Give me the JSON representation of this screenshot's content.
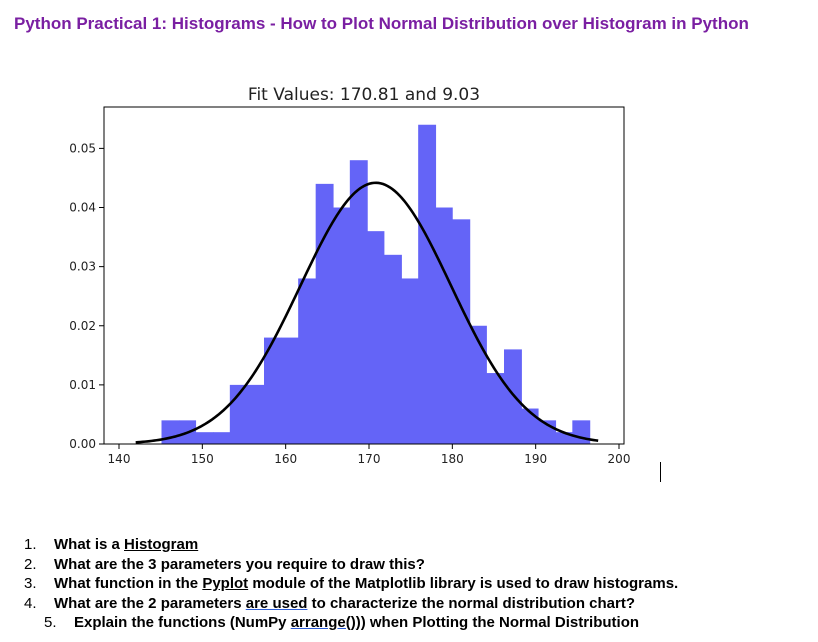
{
  "doc_title": "Python Practical 1: Histograms - How to Plot Normal Distribution over Histogram in Python",
  "colors": {
    "title": "#7a1fa2",
    "bars": "#6464f7",
    "curve": "#000000"
  },
  "chart_data": {
    "type": "bar",
    "title": "Fit Values: 170.81 and 9.03",
    "xlabel": "",
    "ylabel": "",
    "xlim": [
      140,
      200
    ],
    "ylim": [
      0,
      0.057
    ],
    "x_ticks": [
      "140",
      "150",
      "160",
      "170",
      "180",
      "190",
      "200"
    ],
    "y_ticks": [
      "0.00",
      "0.01",
      "0.02",
      "0.03",
      "0.04",
      "0.05"
    ],
    "bins": [
      {
        "x0": 145.1,
        "x1": 147.2,
        "height": 0.004
      },
      {
        "x0": 147.2,
        "x1": 149.2,
        "height": 0.004
      },
      {
        "x0": 149.2,
        "x1": 151.3,
        "height": 0.002
      },
      {
        "x0": 151.3,
        "x1": 153.3,
        "height": 0.002
      },
      {
        "x0": 153.3,
        "x1": 155.4,
        "height": 0.01
      },
      {
        "x0": 155.4,
        "x1": 157.4,
        "height": 0.01
      },
      {
        "x0": 157.4,
        "x1": 159.5,
        "height": 0.018
      },
      {
        "x0": 159.5,
        "x1": 161.5,
        "height": 0.018
      },
      {
        "x0": 161.5,
        "x1": 163.6,
        "height": 0.028
      },
      {
        "x0": 163.6,
        "x1": 165.7,
        "height": 0.044
      },
      {
        "x0": 165.7,
        "x1": 167.7,
        "height": 0.04
      },
      {
        "x0": 167.7,
        "x1": 169.8,
        "height": 0.048
      },
      {
        "x0": 169.8,
        "x1": 171.8,
        "height": 0.036
      },
      {
        "x0": 171.8,
        "x1": 173.9,
        "height": 0.032
      },
      {
        "x0": 173.9,
        "x1": 175.9,
        "height": 0.028
      },
      {
        "x0": 175.9,
        "x1": 178.0,
        "height": 0.054
      },
      {
        "x0": 178.0,
        "x1": 180.0,
        "height": 0.04
      },
      {
        "x0": 180.0,
        "x1": 182.1,
        "height": 0.038
      },
      {
        "x0": 182.1,
        "x1": 184.1,
        "height": 0.02
      },
      {
        "x0": 184.1,
        "x1": 186.2,
        "height": 0.012
      },
      {
        "x0": 186.2,
        "x1": 188.3,
        "height": 0.016
      },
      {
        "x0": 188.3,
        "x1": 190.3,
        "height": 0.006
      },
      {
        "x0": 190.3,
        "x1": 192.4,
        "height": 0.004
      },
      {
        "x0": 192.4,
        "x1": 194.4,
        "height": 0.002
      },
      {
        "x0": 194.4,
        "x1": 196.5,
        "height": 0.004
      }
    ],
    "fit": {
      "mean": 170.81,
      "std": 9.03,
      "x_range": [
        142,
        197.5
      ]
    },
    "grid": false,
    "legend": "none"
  },
  "questions": [
    {
      "num": "1.",
      "text": "What is a ",
      "underlined": "Histogram",
      "rest": ""
    },
    {
      "num": "2.",
      "text": "What are the 3 parameters you require to draw this?",
      "underlined": "",
      "rest": ""
    },
    {
      "num": "3.",
      "text": "What function in the ",
      "underlined": "Pyplot",
      "rest": " module of the Matplotlib library is used to draw histograms."
    },
    {
      "num": "4.",
      "text": "What are the 2 parameters ",
      "underlined": "are used",
      "rest": " to characterize the normal distribution chart?"
    },
    {
      "num": "5.",
      "text": "Explain the functions (NumPy ",
      "underlined": "arrange()",
      "rest": ")) when Plotting the Normal Distribution"
    }
  ]
}
